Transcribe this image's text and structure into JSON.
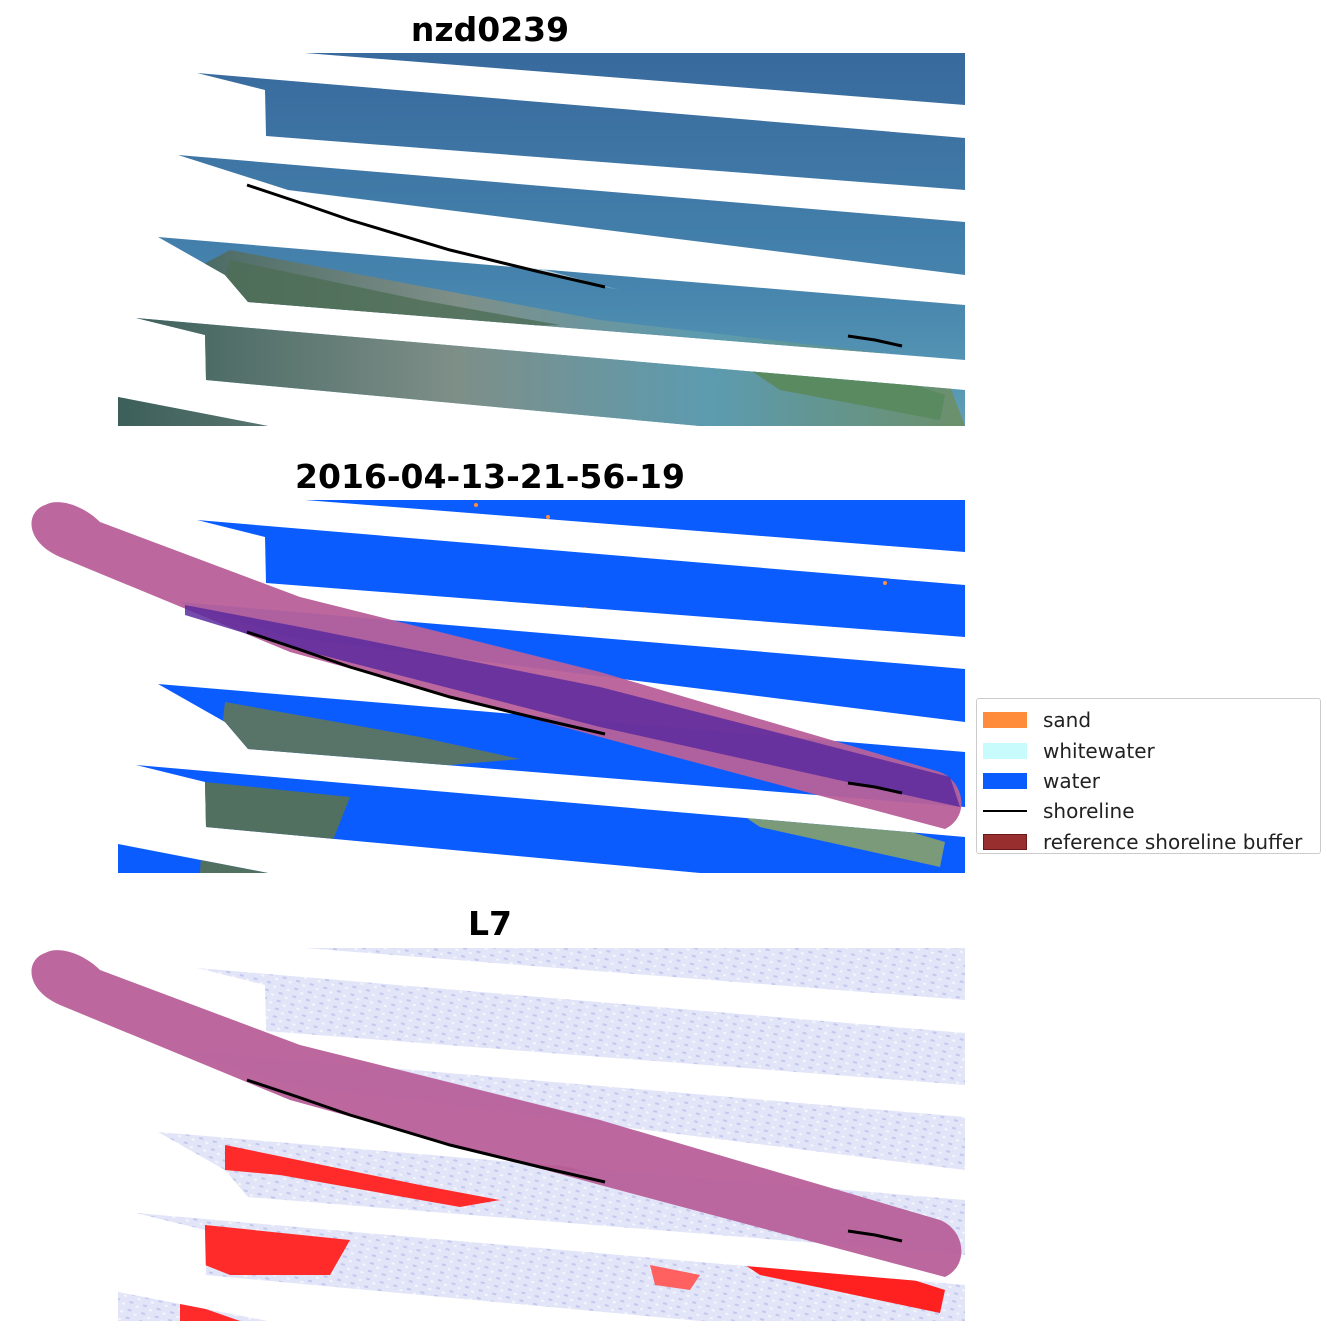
{
  "panels": [
    {
      "title": "nzd0239"
    },
    {
      "title": "2016-04-13-21-56-19"
    },
    {
      "title": "L7"
    }
  ],
  "legend": {
    "items": [
      {
        "label": "sand",
        "color": "#ff8c3a",
        "kind": "patch"
      },
      {
        "label": "whitewater",
        "color": "#c8fbfb",
        "kind": "patch"
      },
      {
        "label": "water",
        "color": "#0a5cff",
        "kind": "patch"
      },
      {
        "label": "shoreline",
        "color": "#000000",
        "kind": "line"
      },
      {
        "label": "reference shoreline buffer",
        "color": "#982e2e",
        "kind": "patch"
      }
    ]
  },
  "colors": {
    "rgb_water": "#3f76a8",
    "rgb_land": "#5f7f6a",
    "class_water": "#0a5cff",
    "buffer": "#b8609a",
    "buffer_over_water": "#5c2a9e",
    "mndwi_pos": "#dfe2f6",
    "mndwi_neg": "#ff2020"
  }
}
